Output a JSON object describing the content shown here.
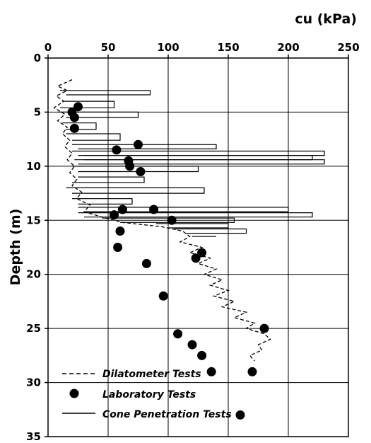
{
  "chart_data": {
    "type": "line",
    "title": "",
    "xlabel": "cu  (kPa)",
    "ylabel": "Depth  (m)",
    "xlim": [
      0,
      250
    ],
    "ylim": [
      0,
      35
    ],
    "y_inverted": true,
    "x_axis_position": "top",
    "x_ticks": [
      0,
      50,
      100,
      150,
      200,
      250
    ],
    "y_ticks": [
      0,
      5,
      10,
      15,
      20,
      25,
      30,
      35
    ],
    "grid": true,
    "legend_position": "bottom-left",
    "series": [
      {
        "name": "Dilatometer Tests",
        "style": "dashed",
        "points": [
          [
            20,
            2
          ],
          [
            8,
            2.6
          ],
          [
            16,
            3
          ],
          [
            7,
            3.5
          ],
          [
            13,
            4
          ],
          [
            5,
            4.6
          ],
          [
            14,
            5.2
          ],
          [
            8,
            5.8
          ],
          [
            16,
            6.4
          ],
          [
            12,
            7
          ],
          [
            18,
            7.6
          ],
          [
            14,
            8.2
          ],
          [
            20,
            8.8
          ],
          [
            16,
            9.4
          ],
          [
            22,
            10
          ],
          [
            18,
            10.6
          ],
          [
            24,
            11.2
          ],
          [
            20,
            11.8
          ],
          [
            28,
            12.4
          ],
          [
            24,
            13
          ],
          [
            35,
            13.6
          ],
          [
            30,
            14.2
          ],
          [
            48,
            14.8
          ],
          [
            62,
            15.2
          ],
          [
            95,
            15.6
          ],
          [
            112,
            16
          ],
          [
            118,
            16.5
          ],
          [
            110,
            17
          ],
          [
            128,
            17.5
          ],
          [
            118,
            18
          ],
          [
            135,
            18.5
          ],
          [
            125,
            19
          ],
          [
            140,
            19.5
          ],
          [
            130,
            20
          ],
          [
            145,
            20.5
          ],
          [
            135,
            21
          ],
          [
            150,
            21.5
          ],
          [
            138,
            22
          ],
          [
            155,
            22.5
          ],
          [
            145,
            23
          ],
          [
            165,
            23.5
          ],
          [
            155,
            24
          ],
          [
            172,
            24.5
          ],
          [
            165,
            25
          ],
          [
            180,
            25.5
          ],
          [
            185,
            26
          ],
          [
            175,
            26.5
          ],
          [
            178,
            27
          ],
          [
            168,
            27.5
          ],
          [
            172,
            28
          ]
        ]
      },
      {
        "name": "Laboratory Tests",
        "style": "marker",
        "points": [
          [
            25,
            4.5
          ],
          [
            20,
            5
          ],
          [
            22,
            5.5
          ],
          [
            22,
            6.5
          ],
          [
            75,
            8
          ],
          [
            57,
            8.5
          ],
          [
            67,
            9.5
          ],
          [
            68,
            10
          ],
          [
            77,
            10.5
          ],
          [
            62,
            14
          ],
          [
            88,
            14
          ],
          [
            55,
            14.5
          ],
          [
            103,
            15
          ],
          [
            60,
            16
          ],
          [
            58,
            17.5
          ],
          [
            82,
            19
          ],
          [
            128,
            18
          ],
          [
            123,
            18.5
          ],
          [
            96,
            22
          ],
          [
            180,
            25
          ],
          [
            108,
            25.5
          ],
          [
            120,
            26.5
          ],
          [
            128,
            27.5
          ],
          [
            136,
            29
          ],
          [
            170,
            29
          ],
          [
            160,
            33
          ]
        ]
      },
      {
        "name": "Cone Penetration Tests",
        "style": "solid",
        "segments": [
          [
            [
              10,
              3
            ],
            [
              85,
              3
            ],
            [
              85,
              3.4
            ],
            [
              15,
              3.4
            ]
          ],
          [
            [
              12,
              4
            ],
            [
              55,
              4
            ],
            [
              55,
              4.6
            ],
            [
              10,
              4.6
            ]
          ],
          [
            [
              8,
              5
            ],
            [
              75,
              5
            ],
            [
              75,
              5.5
            ],
            [
              15,
              5.5
            ]
          ],
          [
            [
              12,
              6
            ],
            [
              40,
              6
            ],
            [
              40,
              6.6
            ],
            [
              15,
              6.6
            ]
          ],
          [
            [
              15,
              7
            ],
            [
              60,
              7
            ],
            [
              60,
              7.6
            ],
            [
              20,
              7.6
            ]
          ],
          [
            [
              20,
              8
            ],
            [
              140,
              8
            ],
            [
              140,
              8.4
            ],
            [
              25,
              8.4
            ]
          ],
          [
            [
              20,
              8.6
            ],
            [
              230,
              8.6
            ],
            [
              230,
              9.0
            ],
            [
              30,
              9.0
            ]
          ],
          [
            [
              25,
              9.0
            ],
            [
              220,
              9.0
            ],
            [
              220,
              9.4
            ],
            [
              30,
              9.4
            ]
          ],
          [
            [
              22,
              9.4
            ],
            [
              230,
              9.4
            ],
            [
              230,
              9.8
            ],
            [
              25,
              9.8
            ]
          ],
          [
            [
              20,
              10.0
            ],
            [
              125,
              10.0
            ],
            [
              125,
              10.5
            ],
            [
              25,
              10.5
            ]
          ],
          [
            [
              25,
              11
            ],
            [
              80,
              11
            ],
            [
              80,
              11.5
            ],
            [
              20,
              11.5
            ]
          ],
          [
            [
              15,
              12
            ],
            [
              130,
              12
            ],
            [
              130,
              12.5
            ],
            [
              20,
              12.5
            ]
          ],
          [
            [
              20,
              13
            ],
            [
              70,
              13
            ],
            [
              70,
              13.5
            ],
            [
              25,
              13.5
            ]
          ],
          [
            [
              25,
              13.8
            ],
            [
              200,
              13.8
            ],
            [
              200,
              14.2
            ],
            [
              30,
              14.2
            ]
          ],
          [
            [
              25,
              14.3
            ],
            [
              220,
              14.3
            ],
            [
              220,
              14.7
            ],
            [
              30,
              14.7
            ]
          ],
          [
            [
              45,
              14.8
            ],
            [
              155,
              14.8
            ],
            [
              155,
              15.2
            ],
            [
              60,
              15.2
            ]
          ],
          [
            [
              90,
              15.3
            ],
            [
              150,
              15.3
            ],
            [
              150,
              15.7
            ],
            [
              100,
              15.7
            ]
          ],
          [
            [
              105,
              15.8
            ],
            [
              165,
              15.8
            ],
            [
              165,
              16.2
            ],
            [
              115,
              16.2
            ]
          ],
          [
            [
              120,
              16.5
            ],
            [
              140,
              16.5
            ]
          ]
        ]
      }
    ]
  }
}
